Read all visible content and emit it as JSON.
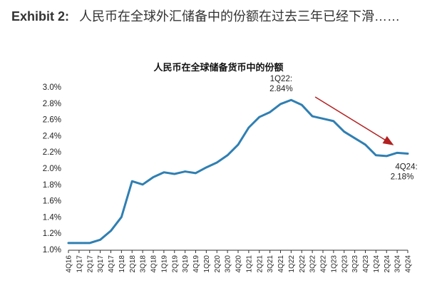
{
  "exhibit": {
    "number": "Exhibit 2:",
    "text": "人民币在全球外汇储备中的份额在过去三年已经下滑……"
  },
  "chart_data": {
    "type": "line",
    "title": "人民币在全球储备货币中的份额",
    "xlabel": "",
    "ylabel": "",
    "ylim": [
      1.0,
      3.0
    ],
    "y_ticks": [
      "1.0%",
      "1.2%",
      "1.4%",
      "1.6%",
      "1.8%",
      "2.0%",
      "2.2%",
      "2.4%",
      "2.6%",
      "2.8%",
      "3.0%"
    ],
    "x": [
      "4Q16",
      "1Q17",
      "2Q17",
      "3Q17",
      "4Q17",
      "1Q18",
      "2Q18",
      "3Q18",
      "4Q18",
      "1Q19",
      "2Q19",
      "3Q19",
      "4Q19",
      "1Q20",
      "2Q20",
      "3Q20",
      "4Q20",
      "1Q21",
      "2Q21",
      "3Q21",
      "4Q21",
      "1Q22",
      "2Q22",
      "3Q22",
      "4Q22",
      "1Q23",
      "2Q23",
      "3Q23",
      "4Q23",
      "1Q24",
      "2Q24",
      "3Q24",
      "4Q24"
    ],
    "x_tick_labels": [
      "4Q16",
      "1Q17",
      "2Q17",
      "3Q17",
      "4Q17",
      "1Q18",
      "2Q18",
      "3Q18",
      "4Q18",
      "1Q19",
      "2Q19",
      "3Q19",
      "4Q19",
      "1Q20",
      "2Q20",
      "3Q20",
      "4Q20",
      "1Q21",
      "2Q21",
      "3Q21",
      "4Q21",
      "1Q22",
      "2Q22",
      "3Q22",
      "4Q22",
      "1Q23",
      "2Q23",
      "3Q23",
      "4Q23",
      "1Q24",
      "2Q24",
      "3Q24",
      "4Q24"
    ],
    "series": [
      {
        "values": [
          1.08,
          1.08,
          1.08,
          1.12,
          1.23,
          1.4,
          1.84,
          1.8,
          1.89,
          1.95,
          1.93,
          1.96,
          1.94,
          2.01,
          2.07,
          2.16,
          2.29,
          2.5,
          2.63,
          2.69,
          2.79,
          2.84,
          2.78,
          2.64,
          2.61,
          2.58,
          2.45,
          2.37,
          2.29,
          2.16,
          2.15,
          2.19,
          2.18
        ],
        "color": "#2f7fb2"
      }
    ],
    "grid": false,
    "annotations": [
      {
        "label": "1Q22:",
        "value_text": "2.84%",
        "point": "1Q22"
      },
      {
        "label": "4Q24:",
        "value_text": "2.18%",
        "point": "4Q24"
      }
    ],
    "trend_arrow": {
      "from": "3Q22",
      "to": "3Q24",
      "color": "#b32020"
    }
  }
}
